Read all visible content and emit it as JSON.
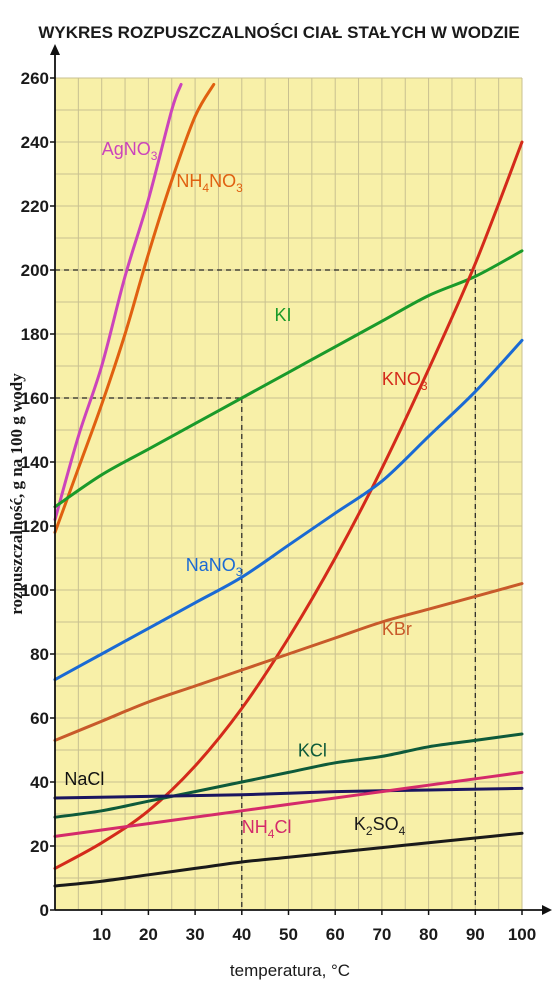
{
  "chart_data": {
    "type": "line",
    "title": "WYKRES ROZPUSZCZALNOŚCI CIAŁ STAŁYCH W WODZIE",
    "xlabel": "temperatura, °C",
    "ylabel": "rozpuszczalność, g na 100 g wody",
    "xlim": [
      0,
      100
    ],
    "ylim": [
      0,
      260
    ],
    "xticks": [
      "10",
      "20",
      "30",
      "40",
      "50",
      "60",
      "70",
      "80",
      "90",
      "100"
    ],
    "yticks": [
      "0",
      "20",
      "40",
      "60",
      "80",
      "100",
      "120",
      "140",
      "160",
      "180",
      "200",
      "220",
      "240",
      "260"
    ],
    "grid": true,
    "background_color": "#f8f0a8",
    "grid_color": "#c8c090",
    "series": [
      {
        "name": "AgNO3",
        "label_main": "AgNO",
        "label_sub": "3",
        "color": "#cc44bb",
        "x": [
          0,
          5,
          10,
          15,
          20,
          25,
          27
        ],
        "y": [
          122,
          148,
          170,
          198,
          222,
          250,
          258
        ]
      },
      {
        "name": "NH4NO3",
        "label_main": "NH",
        "label_sub": "4",
        "label_main2": "NO",
        "label_sub2": "3",
        "color": "#e06010",
        "x": [
          0,
          5,
          10,
          15,
          20,
          25,
          30,
          34
        ],
        "y": [
          118,
          138,
          158,
          180,
          205,
          228,
          248,
          258
        ]
      },
      {
        "name": "KI",
        "label_main": "KI",
        "color": "#1a9a2a",
        "x": [
          0,
          10,
          20,
          30,
          40,
          50,
          60,
          70,
          80,
          90,
          100
        ],
        "y": [
          126,
          136,
          144,
          152,
          160,
          168,
          176,
          184,
          192,
          198,
          206
        ]
      },
      {
        "name": "KNO3",
        "label_main": "KNO",
        "label_sub": "3",
        "color": "#d42a1a",
        "x": [
          0,
          10,
          20,
          30,
          40,
          50,
          60,
          70,
          80,
          90,
          100
        ],
        "y": [
          13,
          21,
          31,
          45,
          63,
          85,
          110,
          138,
          169,
          202,
          240
        ]
      },
      {
        "name": "NaNO3",
        "label_main": "NaNO",
        "label_sub": "3",
        "color": "#1a6ad4",
        "x": [
          0,
          10,
          20,
          30,
          40,
          50,
          60,
          70,
          80,
          90,
          100
        ],
        "y": [
          72,
          80,
          88,
          96,
          104,
          114,
          124,
          134,
          148,
          162,
          178
        ]
      },
      {
        "name": "KBr",
        "label_main": "KBr",
        "color": "#c85a2a",
        "x": [
          0,
          10,
          20,
          30,
          40,
          50,
          60,
          70,
          80,
          90,
          100
        ],
        "y": [
          53,
          59,
          65,
          70,
          75,
          80,
          85,
          90,
          94,
          98,
          102
        ]
      },
      {
        "name": "KCl",
        "label_main": "KCl",
        "color": "#0e5a3a",
        "x": [
          0,
          10,
          20,
          30,
          40,
          50,
          60,
          70,
          80,
          90,
          100
        ],
        "y": [
          29,
          31,
          34,
          37,
          40,
          43,
          46,
          48,
          51,
          53,
          55
        ]
      },
      {
        "name": "NaCl",
        "label_main": "NaCl",
        "color": "#1a1660",
        "x": [
          0,
          20,
          40,
          60,
          80,
          100
        ],
        "y": [
          35,
          35.5,
          36,
          37,
          37.5,
          38
        ]
      },
      {
        "name": "NH4Cl",
        "label_main": "NH",
        "label_sub": "4",
        "label_main2": "Cl",
        "color": "#d42a6a",
        "x": [
          0,
          10,
          20,
          30,
          40,
          50,
          60,
          70,
          80,
          90,
          100
        ],
        "y": [
          23,
          25,
          27,
          29,
          31,
          33,
          35,
          37,
          39,
          41,
          43
        ]
      },
      {
        "name": "K2SO4",
        "label_main": "K",
        "label_sub": "2",
        "label_main2": "SO",
        "label_sub2": "4",
        "color": "#1a1a1a",
        "x": [
          0,
          10,
          20,
          30,
          40,
          50,
          60,
          70,
          80,
          90,
          100
        ],
        "y": [
          7.5,
          9,
          11,
          13,
          15,
          16.5,
          18,
          19.5,
          21,
          22.5,
          24
        ]
      }
    ],
    "reference_lines": [
      {
        "x": 40,
        "y": 160
      },
      {
        "x": 90,
        "y": 200
      }
    ]
  }
}
